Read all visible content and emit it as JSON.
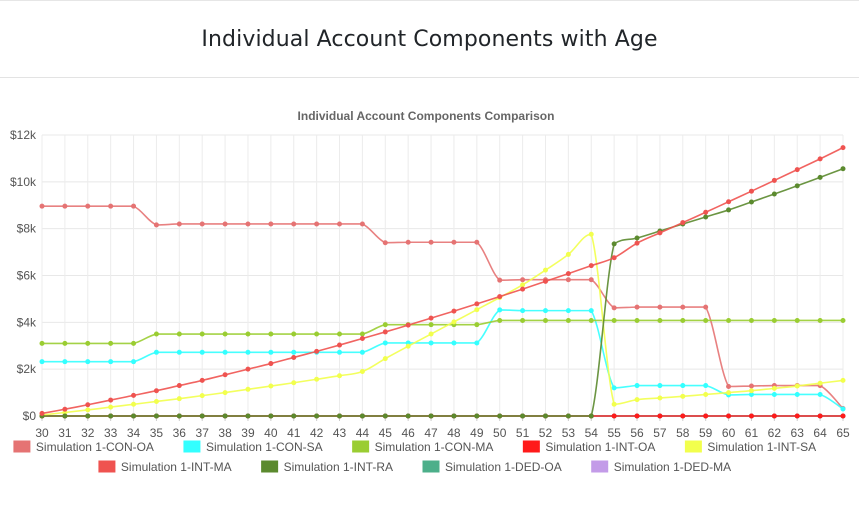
{
  "page": {
    "title": "Individual Account Components with Age"
  },
  "chart_data": {
    "type": "line",
    "title": "Individual Account Components Comparison",
    "xlabel": "",
    "ylabel": "",
    "ylim": [
      0,
      12000
    ],
    "yticks": [
      0,
      2000,
      4000,
      6000,
      8000,
      10000,
      12000
    ],
    "ytick_labels": [
      "$0",
      "$2k",
      "$4k",
      "$6k",
      "$8k",
      "$10k",
      "$12k"
    ],
    "x": [
      30,
      31,
      32,
      33,
      34,
      35,
      36,
      37,
      38,
      39,
      40,
      41,
      42,
      43,
      44,
      45,
      46,
      47,
      48,
      49,
      50,
      51,
      52,
      53,
      54,
      55,
      56,
      57,
      58,
      59,
      60,
      61,
      62,
      63,
      64,
      65
    ],
    "grid": true,
    "legend_position": "bottom",
    "series": [
      {
        "name": "Simulation 1-CON-OA",
        "color": "#e57373",
        "values": [
          8960,
          8960,
          8960,
          8960,
          8960,
          8160,
          8200,
          8200,
          8200,
          8200,
          8200,
          8200,
          8200,
          8200,
          8200,
          7400,
          7420,
          7420,
          7420,
          7420,
          5800,
          5820,
          5820,
          5820,
          5820,
          4620,
          4650,
          4650,
          4650,
          4650,
          1260,
          1280,
          1300,
          1300,
          1300,
          320
        ]
      },
      {
        "name": "Simulation 1-CON-SA",
        "color": "#33ffff",
        "values": [
          2320,
          2320,
          2320,
          2320,
          2320,
          2720,
          2720,
          2720,
          2720,
          2720,
          2720,
          2720,
          2720,
          2720,
          2720,
          3120,
          3120,
          3120,
          3120,
          3120,
          4530,
          4500,
          4500,
          4500,
          4500,
          1200,
          1300,
          1300,
          1300,
          1300,
          900,
          920,
          920,
          920,
          920,
          300
        ]
      },
      {
        "name": "Simulation 1-CON-MA",
        "color": "#9acd32",
        "values": [
          3100,
          3100,
          3100,
          3100,
          3100,
          3500,
          3500,
          3500,
          3500,
          3500,
          3500,
          3500,
          3500,
          3500,
          3500,
          3900,
          3900,
          3900,
          3900,
          3900,
          4080,
          4080,
          4080,
          4080,
          4080,
          4080,
          4080,
          4080,
          4080,
          4080,
          4080,
          4080,
          4080,
          4080,
          4080,
          4080
        ]
      },
      {
        "name": "Simulation 1-INT-OA",
        "color": "#ff1a1a",
        "values": [
          0,
          0,
          0,
          0,
          0,
          0,
          0,
          0,
          0,
          0,
          0,
          0,
          0,
          0,
          0,
          0,
          0,
          0,
          0,
          0,
          0,
          0,
          0,
          0,
          0,
          0,
          0,
          0,
          0,
          0,
          0,
          0,
          0,
          0,
          0,
          0
        ]
      },
      {
        "name": "Simulation 1-INT-SA",
        "color": "#f2ff4d",
        "values": [
          40,
          150,
          260,
          380,
          500,
          620,
          740,
          870,
          1000,
          1140,
          1280,
          1420,
          1570,
          1720,
          1900,
          2450,
          2980,
          3500,
          4020,
          4540,
          5060,
          5600,
          6230,
          6900,
          7760,
          500,
          700,
          770,
          840,
          920,
          1000,
          1080,
          1180,
          1280,
          1400,
          1520
        ]
      },
      {
        "name": "Simulation 1-INT-MA",
        "color": "#ef5350",
        "values": [
          110,
          290,
          480,
          680,
          880,
          1080,
          1300,
          1520,
          1760,
          2000,
          2240,
          2500,
          2760,
          3030,
          3310,
          3590,
          3880,
          4180,
          4480,
          4790,
          5100,
          5420,
          5750,
          6080,
          6420,
          6760,
          7380,
          7820,
          8260,
          8700,
          9150,
          9600,
          10060,
          10520,
          10980,
          11460
        ]
      },
      {
        "name": "Simulation 1-INT-RA",
        "color": "#5b8a2e",
        "values": [
          0,
          0,
          0,
          0,
          0,
          0,
          0,
          0,
          0,
          0,
          0,
          0,
          0,
          0,
          0,
          0,
          0,
          0,
          0,
          0,
          0,
          0,
          0,
          0,
          0,
          7350,
          7600,
          7900,
          8200,
          8500,
          8800,
          9140,
          9480,
          9830,
          10190,
          10560
        ]
      },
      {
        "name": "Simulation 1-DED-OA",
        "color": "#4caf8a",
        "values": [
          0,
          0,
          0,
          0,
          0,
          0,
          0,
          0,
          0,
          0,
          0,
          0,
          0,
          0,
          0,
          0,
          0,
          0,
          0,
          0,
          0,
          0,
          0,
          0,
          0,
          0,
          0,
          0,
          0,
          0,
          0,
          0,
          0,
          0,
          0,
          0
        ]
      },
      {
        "name": "Simulation 1-DED-MA",
        "color": "#c39be8",
        "values": [
          0,
          0,
          0,
          0,
          0,
          0,
          0,
          0,
          0,
          0,
          0,
          0,
          0,
          0,
          0,
          0,
          0,
          0,
          0,
          0,
          0,
          0,
          0,
          0,
          0,
          0,
          0,
          0,
          0,
          0,
          0,
          0,
          0,
          0,
          0,
          0
        ]
      }
    ]
  }
}
